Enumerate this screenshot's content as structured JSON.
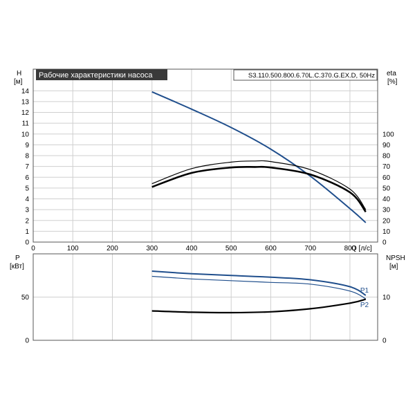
{
  "chart_data": [
    {
      "type": "line",
      "title": "Рабочие характеристики насоса",
      "model_label": "S3.110.500.800.6.70L.C.370.G.EX.D, 50Hz",
      "xlabel": "Q [л/с]",
      "ylabel_left": "H",
      "ylabel_left_unit": "[м]",
      "ylabel_right": "eta",
      "ylabel_right_unit": "[%]",
      "xlim": [
        0,
        870
      ],
      "ylim_left": [
        0,
        16
      ],
      "ylim_right": [
        0,
        160
      ],
      "x_ticks": [
        "0",
        "100",
        "200",
        "300",
        "400",
        "500",
        "600",
        "700",
        "800"
      ],
      "y_left_ticks": [
        "0",
        "1",
        "2",
        "3",
        "4",
        "5",
        "6",
        "7",
        "8",
        "9",
        "10",
        "11",
        "12",
        "13",
        "14"
      ],
      "y_right_ticks": [
        "0",
        "10",
        "20",
        "30",
        "40",
        "50",
        "60",
        "70",
        "80",
        "90",
        "100"
      ],
      "grid": true,
      "colors": {
        "head": "#1f4e8c",
        "eta": "#000000"
      },
      "series": [
        {
          "axis": "left",
          "style": "head",
          "x": [
            300,
            400,
            500,
            600,
            700,
            800,
            840
          ],
          "y": [
            13.9,
            12.3,
            10.6,
            8.6,
            6.1,
            3.1,
            1.8
          ]
        },
        {
          "axis": "right",
          "style": "eta-outer",
          "x": [
            300,
            400,
            500,
            560,
            600,
            700,
            800,
            840
          ],
          "y": [
            54,
            68,
            74,
            75,
            74.5,
            67,
            49,
            30
          ]
        },
        {
          "axis": "right",
          "style": "eta-inner",
          "x": [
            300,
            400,
            500,
            560,
            600,
            700,
            800,
            840
          ],
          "y": [
            51,
            64,
            69,
            69.5,
            69,
            62.5,
            46,
            28
          ]
        }
      ]
    },
    {
      "type": "line",
      "xlabel": "",
      "ylabel_left": "P",
      "ylabel_left_unit": "[кВт]",
      "ylabel_right": "NPSH",
      "ylabel_right_unit": "[м]",
      "xlim": [
        0,
        870
      ],
      "ylim_left": [
        0,
        100
      ],
      "ylim_right": [
        0,
        20
      ],
      "x_ticks": [
        "0",
        "100",
        "200",
        "300",
        "400",
        "500",
        "600",
        "700",
        "800"
      ],
      "y_left_ticks": [
        "0",
        "50"
      ],
      "y_right_ticks": [
        "0",
        "10"
      ],
      "grid": true,
      "colors": {
        "power": "#1f4e8c",
        "npsh": "#000000"
      },
      "series": [
        {
          "axis": "left",
          "name": "P1",
          "style": "p1",
          "x": [
            300,
            400,
            500,
            600,
            700,
            800,
            840
          ],
          "y": [
            80,
            77,
            75,
            73,
            70,
            62,
            52
          ]
        },
        {
          "axis": "left",
          "name": "P2",
          "style": "p2",
          "x": [
            300,
            400,
            500,
            600,
            700,
            800,
            840
          ],
          "y": [
            74,
            71,
            69,
            67,
            65,
            57,
            48
          ]
        },
        {
          "axis": "right",
          "style": "npsh",
          "x": [
            300,
            400,
            500,
            600,
            700,
            800,
            840
          ],
          "y": [
            6.8,
            6.5,
            6.4,
            6.6,
            7.3,
            8.6,
            9.5
          ]
        }
      ]
    }
  ]
}
